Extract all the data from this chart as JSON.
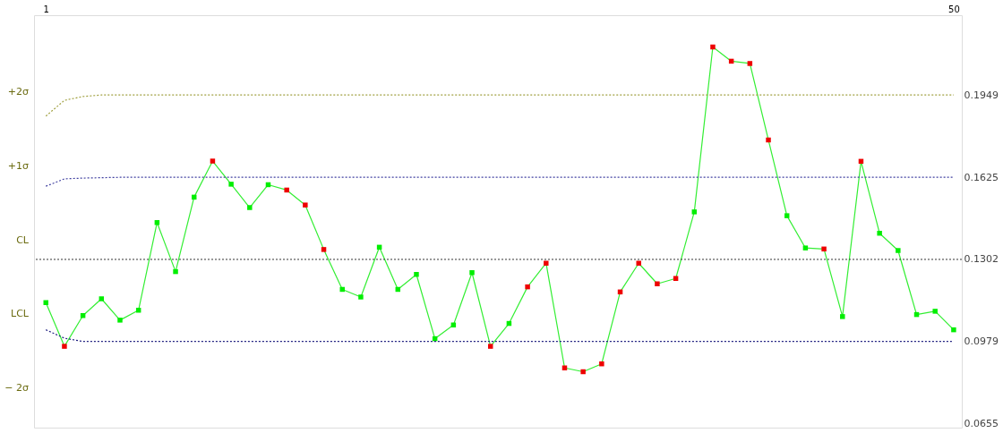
{
  "chart_data": {
    "type": "line",
    "x": [
      1,
      2,
      3,
      4,
      5,
      6,
      7,
      8,
      9,
      10,
      11,
      12,
      13,
      14,
      15,
      16,
      17,
      18,
      19,
      20,
      21,
      22,
      23,
      24,
      25,
      26,
      27,
      28,
      29,
      30,
      31,
      32,
      33,
      34,
      35,
      36,
      37,
      38,
      39,
      40,
      41,
      42,
      43,
      44,
      45,
      46,
      47,
      48,
      49,
      50
    ],
    "xlim": [
      0.36,
      50.44
    ],
    "xticks": [
      1,
      50
    ],
    "ylim": [
      0.064,
      0.2263
    ],
    "annotations": [
      "+2σ",
      "+1σ",
      "CL",
      "LCL",
      "− 2σ"
    ],
    "yticks": [
      0.1949,
      0.1625,
      0.1302,
      0.0979,
      0.0655
    ],
    "series": [
      {
        "color": "#33ee33",
        "marker": "square",
        "line_style": "solid",
        "values": [
          0.1132,
          0.096,
          0.1081,
          0.1147,
          0.1063,
          0.1102,
          0.1447,
          0.1254,
          0.1547,
          0.1689,
          0.1598,
          0.1506,
          0.1596,
          0.1575,
          0.1516,
          0.1341,
          0.1184,
          0.1154,
          0.135,
          0.1184,
          0.1243,
          0.099,
          0.1044,
          0.125,
          0.096,
          0.105,
          0.1194,
          0.1287,
          0.0875,
          0.086,
          0.0891,
          0.1174,
          0.1287,
          0.1206,
          0.1227,
          0.1489,
          0.2138,
          0.2082,
          0.2073,
          0.1772,
          0.1474,
          0.1347,
          0.1343,
          0.1077,
          0.1688,
          0.1405,
          0.1337,
          0.1085,
          0.1098,
          0.1025
        ],
        "colors": [
          "#00ee00",
          "#ee0000",
          "#00ee00",
          "#00ee00",
          "#00ee00",
          "#00ee00",
          "#00ee00",
          "#00ee00",
          "#00ee00",
          "#ee0000",
          "#00ee00",
          "#00ee00",
          "#00ee00",
          "#ee0000",
          "#ee0000",
          "#ee0000",
          "#00ee00",
          "#00ee00",
          "#00ee00",
          "#00ee00",
          "#00ee00",
          "#00ee00",
          "#00ee00",
          "#00ee00",
          "#ee0000",
          "#00ee00",
          "#ee0000",
          "#ee0000",
          "#ee0000",
          "#ee0000",
          "#ee0000",
          "#ee0000",
          "#ee0000",
          "#ee0000",
          "#ee0000",
          "#00ee00",
          "#ee0000",
          "#ee0000",
          "#ee0000",
          "#ee0000",
          "#00ee00",
          "#00ee00",
          "#ee0000",
          "#00ee00",
          "#ee0000",
          "#00ee00",
          "#00ee00",
          "#00ee00",
          "#00ee00",
          "#00ee00"
        ]
      },
      {
        "color": "#a0a040",
        "marker": "none",
        "line_style": "dotted",
        "x": [
          1,
          2,
          3,
          4,
          50
        ],
        "values": [
          0.1866,
          0.1928,
          0.1943,
          0.1949,
          0.1949
        ]
      },
      {
        "color": "#4040a0",
        "marker": "none",
        "line_style": "dotted",
        "x": [
          1,
          2,
          3,
          5,
          50
        ],
        "values": [
          0.159,
          0.1619,
          0.1622,
          0.1625,
          0.1625
        ]
      },
      {
        "color": "#202080",
        "marker": "none",
        "line_style": "dotted",
        "x": [
          1,
          2,
          3,
          50
        ],
        "values": [
          0.1025,
          0.0992,
          0.0979,
          0.0979
        ]
      }
    ],
    "ref_lines": [
      {
        "axis": "y",
        "value": 0.1302,
        "label": null,
        "color": "#333333",
        "line_style": "dotted"
      }
    ],
    "grid": false
  }
}
